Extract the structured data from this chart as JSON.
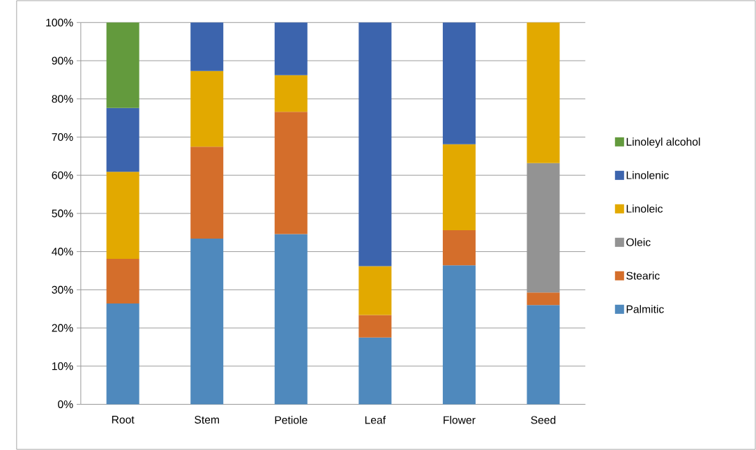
{
  "chart_data": {
    "type": "bar",
    "stacked": true,
    "categories": [
      "Root",
      "Stem",
      "Petiole",
      "Leaf",
      "Flower",
      "Seed"
    ],
    "series": [
      {
        "name": "Palmitic",
        "color": "#4f89bd",
        "values": [
          26.4,
          43.4,
          44.6,
          17.5,
          36.4,
          26.0
        ]
      },
      {
        "name": "Stearic",
        "color": "#d46e2b",
        "values": [
          11.7,
          24.1,
          32.0,
          5.9,
          9.2,
          3.3
        ]
      },
      {
        "name": "Oleic",
        "color": "#939393",
        "values": [
          null,
          null,
          null,
          null,
          null,
          33.9
        ]
      },
      {
        "name": "Linoleic",
        "color": "#e2a900",
        "values": [
          22.8,
          19.8,
          9.6,
          12.8,
          22.5,
          36.8
        ]
      },
      {
        "name": "Linolenic",
        "color": "#3c64ad",
        "values": [
          16.7,
          12.7,
          13.8,
          63.8,
          31.9,
          null
        ]
      },
      {
        "name": "Linoleyl alcohol",
        "color": "#639a3d",
        "values": [
          22.4,
          null,
          null,
          null,
          null,
          null
        ]
      }
    ],
    "ylim": [
      0,
      100
    ],
    "yticks": [
      {
        "value": 0,
        "label": "0%"
      },
      {
        "value": 10,
        "label": "10%"
      },
      {
        "value": 20,
        "label": "20%"
      },
      {
        "value": 30,
        "label": "30%"
      },
      {
        "value": 40,
        "label": "40%"
      },
      {
        "value": 50,
        "label": "50%"
      },
      {
        "value": 60,
        "label": "60%"
      },
      {
        "value": 70,
        "label": "70%"
      },
      {
        "value": 80,
        "label": "80%"
      },
      {
        "value": 90,
        "label": "90%"
      },
      {
        "value": 100,
        "label": "100%"
      }
    ],
    "grid": "y",
    "legend": "right"
  }
}
